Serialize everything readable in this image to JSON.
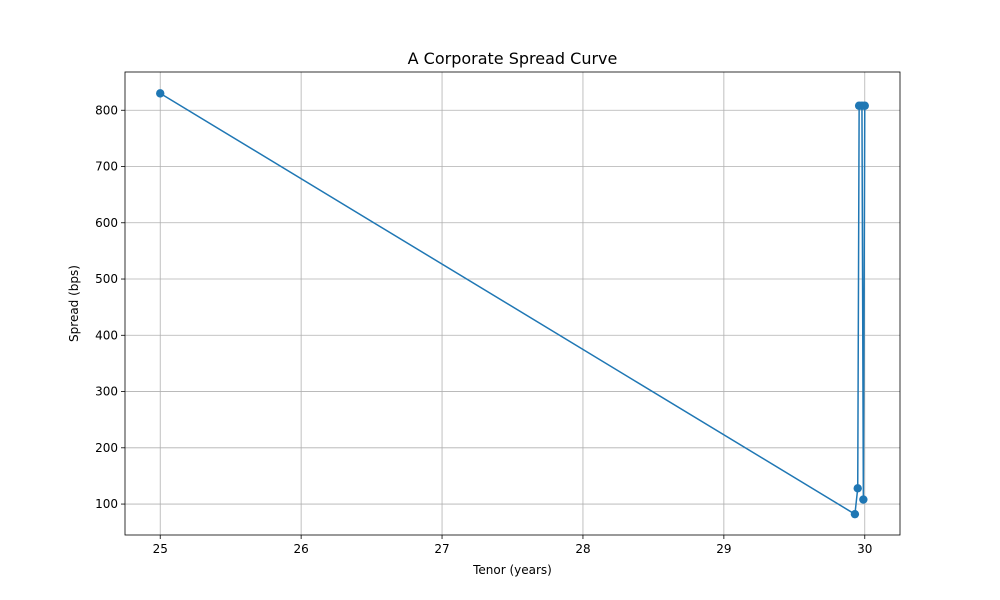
{
  "chart_data": {
    "type": "line",
    "title": "A Corporate Spread Curve",
    "xlabel": "Tenor (years)",
    "ylabel": "Spread (bps)",
    "xlim": [
      24.75,
      30.25
    ],
    "ylim": [
      45,
      868
    ],
    "xticks": [
      25,
      26,
      27,
      28,
      29,
      30
    ],
    "yticks": [
      100,
      200,
      300,
      400,
      500,
      600,
      700,
      800
    ],
    "grid": true,
    "series": [
      {
        "color": "#1f77b4",
        "marker": "circle",
        "points": [
          {
            "x": 25.0,
            "y": 830
          },
          {
            "x": 29.93,
            "y": 82
          },
          {
            "x": 29.95,
            "y": 128
          },
          {
            "x": 29.96,
            "y": 808
          },
          {
            "x": 29.98,
            "y": 808
          },
          {
            "x": 29.99,
            "y": 108
          },
          {
            "x": 30.0,
            "y": 808
          }
        ]
      }
    ]
  }
}
